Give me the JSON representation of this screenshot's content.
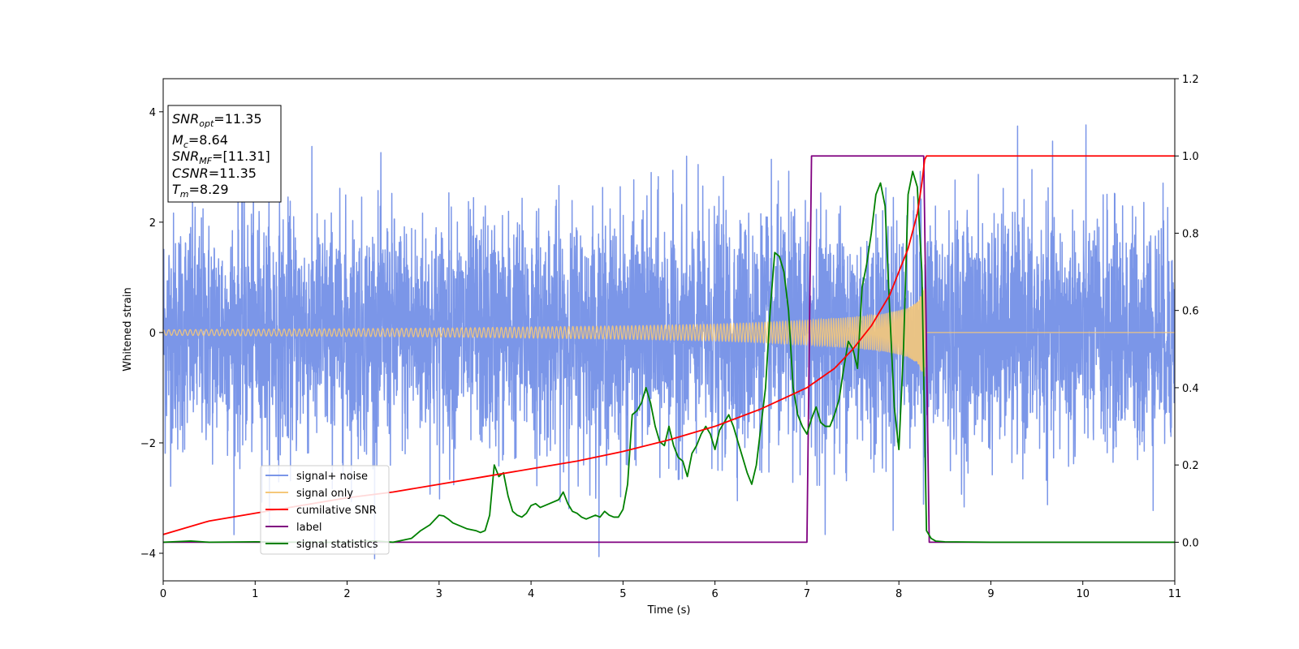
{
  "chart_data": {
    "type": "line",
    "title": "",
    "xlabel": "Time (s)",
    "ylabel": "Whitened strain",
    "xlim": [
      0,
      11
    ],
    "ylim": [
      -4.5,
      4.6
    ],
    "y2lim": [
      -0.1,
      1.2
    ],
    "x_ticks": [
      0,
      1,
      2,
      3,
      4,
      5,
      6,
      7,
      8,
      9,
      10,
      11
    ],
    "y_ticks": [
      -4,
      -2,
      0,
      2,
      4
    ],
    "y2_ticks": [
      0.0,
      0.2,
      0.4,
      0.6,
      0.8,
      1.0,
      1.2
    ],
    "x_tick_labels": [
      "0",
      "1",
      "2",
      "3",
      "4",
      "5",
      "6",
      "7",
      "8",
      "9",
      "10",
      "11"
    ],
    "y_tick_labels": [
      "−4",
      "−2",
      "0",
      "2",
      "4"
    ],
    "y2_tick_labels": [
      "0.0",
      "0.2",
      "0.4",
      "0.6",
      "0.8",
      "1.0",
      "1.2"
    ],
    "grid": false,
    "legend_position": "lower-left",
    "annotation": {
      "lines": [
        {
          "base": "SNR",
          "sub": "opt",
          "value": "=11.35"
        },
        {
          "base": "M",
          "sub": "c",
          "value": "=8.64"
        },
        {
          "base": "SNR",
          "sub": "MF",
          "value": "=[11.31]"
        },
        {
          "base": "CSNR",
          "sub": "",
          "value": "=11.35"
        },
        {
          "base": "T",
          "sub": "m",
          "value": "=8.29"
        }
      ]
    },
    "series": [
      {
        "name": "signal+ noise",
        "color": "#7b96e8",
        "axis": "left",
        "kind": "noise",
        "noise_sigma": 1.05,
        "description_points": {
          "x_range": [
            0,
            11
          ],
          "peak_max": 4.15,
          "peak_min": -4.1
        }
      },
      {
        "name": "signal only",
        "color": "#f5c87a",
        "axis": "left",
        "kind": "chirp",
        "envelope": {
          "x": [
            0,
            1,
            2,
            3,
            4,
            5,
            6,
            6.5,
            7,
            7.5,
            7.8,
            8.0,
            8.1,
            8.2,
            8.27,
            8.29,
            8.3,
            11
          ],
          "amp": [
            0.05,
            0.06,
            0.07,
            0.08,
            0.1,
            0.12,
            0.15,
            0.18,
            0.22,
            0.28,
            0.33,
            0.4,
            0.45,
            0.55,
            0.8,
            0.8,
            0.0,
            0.0
          ]
        }
      },
      {
        "name": "cumilative SNR",
        "color": "#ff0000",
        "axis": "right",
        "x": [
          0,
          0.5,
          1,
          1.5,
          2,
          2.5,
          3,
          3.5,
          4,
          4.5,
          5,
          5.5,
          6,
          6.5,
          7,
          7.3,
          7.5,
          7.7,
          7.9,
          8.0,
          8.1,
          8.2,
          8.25,
          8.28,
          8.3,
          11
        ],
        "values": [
          0.02,
          0.055,
          0.075,
          0.095,
          0.115,
          0.13,
          0.15,
          0.17,
          0.19,
          0.21,
          0.235,
          0.265,
          0.3,
          0.345,
          0.4,
          0.45,
          0.5,
          0.56,
          0.64,
          0.7,
          0.76,
          0.85,
          0.93,
          0.99,
          1.0,
          1.0
        ]
      },
      {
        "name": "label",
        "color": "#800080",
        "axis": "right",
        "x": [
          0,
          7.0,
          7.05,
          8.27,
          8.33,
          11
        ],
        "values": [
          0,
          0,
          1,
          1,
          0,
          0
        ]
      },
      {
        "name": "signal statistics",
        "color": "#008000",
        "axis": "right",
        "x": [
          0,
          0.3,
          0.5,
          1,
          1.5,
          2,
          2.3,
          2.5,
          2.7,
          2.8,
          2.9,
          3.0,
          3.05,
          3.1,
          3.15,
          3.2,
          3.3,
          3.4,
          3.45,
          3.5,
          3.55,
          3.6,
          3.65,
          3.7,
          3.75,
          3.8,
          3.85,
          3.9,
          3.95,
          4.0,
          4.05,
          4.1,
          4.2,
          4.3,
          4.35,
          4.4,
          4.45,
          4.5,
          4.55,
          4.6,
          4.65,
          4.7,
          4.75,
          4.8,
          4.85,
          4.9,
          4.95,
          5.0,
          5.05,
          5.1,
          5.15,
          5.2,
          5.25,
          5.3,
          5.35,
          5.4,
          5.45,
          5.5,
          5.55,
          5.6,
          5.65,
          5.7,
          5.75,
          5.8,
          5.85,
          5.9,
          5.95,
          6.0,
          6.05,
          6.1,
          6.15,
          6.2,
          6.25,
          6.3,
          6.35,
          6.4,
          6.45,
          6.5,
          6.55,
          6.6,
          6.65,
          6.7,
          6.75,
          6.8,
          6.85,
          6.9,
          6.95,
          7.0,
          7.05,
          7.1,
          7.15,
          7.2,
          7.25,
          7.3,
          7.35,
          7.4,
          7.45,
          7.5,
          7.55,
          7.6,
          7.65,
          7.7,
          7.75,
          7.8,
          7.85,
          7.9,
          7.95,
          8.0,
          8.05,
          8.1,
          8.15,
          8.2,
          8.25,
          8.3,
          8.35,
          8.4,
          8.5,
          9,
          10,
          11
        ],
        "values": [
          0.0,
          0.003,
          0.0,
          0.001,
          0.0,
          0.0,
          0.003,
          0.0,
          0.01,
          0.03,
          0.045,
          0.07,
          0.068,
          0.06,
          0.05,
          0.045,
          0.035,
          0.03,
          0.025,
          0.03,
          0.07,
          0.2,
          0.17,
          0.18,
          0.12,
          0.08,
          0.07,
          0.065,
          0.075,
          0.095,
          0.1,
          0.09,
          0.1,
          0.11,
          0.13,
          0.1,
          0.08,
          0.075,
          0.065,
          0.06,
          0.065,
          0.07,
          0.065,
          0.08,
          0.07,
          0.065,
          0.065,
          0.085,
          0.15,
          0.33,
          0.34,
          0.36,
          0.4,
          0.36,
          0.3,
          0.26,
          0.25,
          0.3,
          0.25,
          0.22,
          0.21,
          0.17,
          0.23,
          0.25,
          0.28,
          0.3,
          0.28,
          0.24,
          0.29,
          0.31,
          0.33,
          0.3,
          0.26,
          0.22,
          0.18,
          0.15,
          0.2,
          0.3,
          0.4,
          0.6,
          0.75,
          0.74,
          0.7,
          0.6,
          0.4,
          0.33,
          0.3,
          0.28,
          0.32,
          0.35,
          0.31,
          0.3,
          0.3,
          0.33,
          0.37,
          0.45,
          0.52,
          0.5,
          0.45,
          0.66,
          0.72,
          0.8,
          0.9,
          0.93,
          0.87,
          0.6,
          0.35,
          0.24,
          0.5,
          0.9,
          0.96,
          0.92,
          0.7,
          0.03,
          0.01,
          0.003,
          0.001,
          0.0,
          0.0,
          0.0
        ]
      }
    ]
  }
}
